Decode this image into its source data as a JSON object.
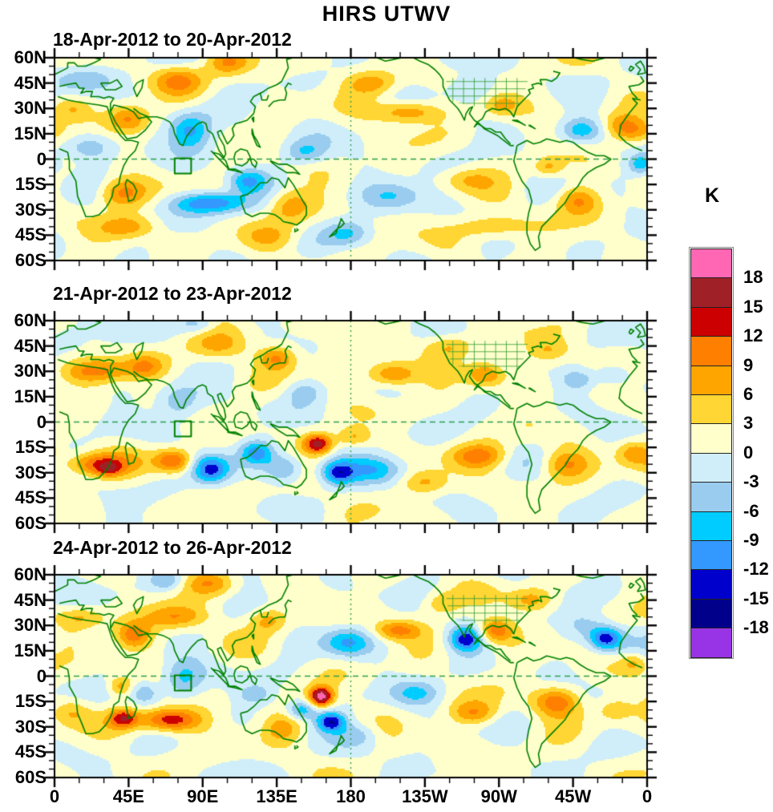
{
  "title": "HIRS UTWV",
  "colorbar": {
    "title": "K",
    "tick_labels": [
      "18",
      "15",
      "12",
      "9",
      "6",
      "3",
      "0",
      "-3",
      "-6",
      "-9",
      "-12",
      "-15",
      "-18"
    ]
  },
  "axes": {
    "lat_labels": [
      "60N",
      "45N",
      "30N",
      "15N",
      "0",
      "15S",
      "30S",
      "45S",
      "60S"
    ],
    "lon_labels": [
      "0",
      "45E",
      "90E",
      "135E",
      "180",
      "135W",
      "90W",
      "45W",
      "0"
    ]
  },
  "chart_data": {
    "type": "heatmap",
    "subtype": "filled-contour anomaly world maps, plate carree, centered on 180",
    "title": "HIRS UTWV",
    "unit": "K",
    "xlabel": "",
    "ylabel": "",
    "lon_ticks_deg": [
      0,
      45,
      90,
      135,
      180,
      225,
      270,
      315,
      360
    ],
    "lat_ticks_deg": [
      60,
      45,
      30,
      15,
      0,
      -15,
      -30,
      -45,
      -60
    ],
    "map_extent": {
      "lon": [
        0,
        360
      ],
      "lat": [
        -60,
        60
      ]
    },
    "levels": [
      -18,
      -15,
      -12,
      -9,
      -6,
      -3,
      0,
      3,
      6,
      9,
      12,
      15,
      18
    ],
    "level_colors_low_to_high": [
      "#9933E6",
      "#00008B",
      "#0000CC",
      "#3399FF",
      "#00CCFF",
      "#99CCEE",
      "#CFEEFA",
      "#FFFFCC",
      "#FFD633",
      "#FFA500",
      "#FF8000",
      "#CC0000",
      "#A02028",
      "#FF66B3"
    ],
    "grid": {
      "equator_dashed": true,
      "dateline_dashed": true
    },
    "region_marker_box": {
      "lon": [
        73,
        83
      ],
      "lat": [
        -8.5,
        0.5
      ]
    },
    "coast_color": "#008000",
    "panels": [
      {
        "label": "18-Apr-2012 to 20-Apr-2012",
        "anomaly_blobs": [
          [
            20,
            48,
            14,
            6,
            -5
          ],
          [
            355,
            16,
            10,
            5,
            6
          ],
          [
            10,
            30,
            8,
            5,
            5
          ],
          [
            45,
            24,
            9,
            6,
            10
          ],
          [
            22,
            7,
            11,
            6,
            -7
          ],
          [
            75,
            47,
            11,
            6,
            8
          ],
          [
            105,
            57,
            9,
            5,
            8
          ],
          [
            82,
            17,
            9,
            8,
            -11
          ],
          [
            40,
            -20,
            10,
            6,
            9
          ],
          [
            95,
            -26,
            16,
            4.5,
            -13
          ],
          [
            117,
            -13,
            8,
            5,
            -9
          ],
          [
            143,
            -27,
            9,
            7,
            7
          ],
          [
            152,
            4,
            9,
            5,
            -7
          ],
          [
            192,
            45,
            11,
            5,
            7
          ],
          [
            215,
            28,
            13,
            4.5,
            10
          ],
          [
            252,
            41,
            11,
            6,
            -5
          ],
          [
            272,
            32,
            8,
            5,
            7
          ],
          [
            320,
            17,
            9,
            5,
            -8
          ],
          [
            345,
            20,
            8,
            5,
            6
          ],
          [
            300,
            -5,
            6,
            4,
            6
          ],
          [
            318,
            -24,
            9,
            6,
            9
          ],
          [
            205,
            -22,
            13,
            6,
            -7
          ],
          [
            250,
            -12,
            11,
            5,
            5
          ],
          [
            265,
            -40,
            18,
            5,
            6
          ],
          [
            356,
            -3,
            5,
            4,
            -8
          ],
          [
            45,
            -40,
            13,
            5,
            7
          ],
          [
            130,
            -46,
            11,
            5,
            5
          ],
          [
            178,
            -44,
            9,
            5,
            -6
          ]
        ]
      },
      {
        "label": "21-Apr-2012 to 23-Apr-2012",
        "anomaly_blobs": [
          [
            25,
            30,
            16,
            5,
            9
          ],
          [
            55,
            33,
            8,
            5,
            7
          ],
          [
            5,
            49,
            8,
            5,
            -4
          ],
          [
            75,
            12,
            9,
            7,
            -7
          ],
          [
            100,
            45,
            12,
            6,
            6
          ],
          [
            135,
            38,
            8,
            5,
            9
          ],
          [
            25,
            -25,
            14,
            5,
            11
          ],
          [
            33,
            -28,
            5,
            3,
            6
          ],
          [
            72,
            -23,
            8,
            5,
            12
          ],
          [
            95,
            -28,
            8,
            6,
            -14
          ],
          [
            123,
            -18,
            7,
            5,
            -10
          ],
          [
            140,
            -28,
            8,
            6,
            -8
          ],
          [
            160,
            -13,
            6,
            4,
            15
          ],
          [
            172,
            -30,
            7,
            5,
            -12
          ],
          [
            182,
            -9,
            7,
            4,
            6
          ],
          [
            205,
            28,
            11,
            5,
            11
          ],
          [
            240,
            45,
            10,
            5,
            6
          ],
          [
            262,
            28,
            8,
            5,
            9
          ],
          [
            300,
            42,
            10,
            5,
            6
          ],
          [
            318,
            25,
            7,
            4,
            -6
          ],
          [
            340,
            28,
            8,
            5,
            -6
          ],
          [
            195,
            -28,
            13,
            6,
            -9
          ],
          [
            258,
            -20,
            12,
            5,
            9
          ],
          [
            225,
            -36,
            10,
            5,
            7
          ],
          [
            310,
            -25,
            10,
            6,
            8
          ],
          [
            352,
            -18,
            7,
            5,
            7
          ],
          [
            87,
            58,
            8,
            4,
            -6
          ],
          [
            152,
            18,
            8,
            5,
            -5
          ]
        ]
      },
      {
        "label": "24-Apr-2012 to 26-Apr-2012",
        "anomaly_blobs": [
          [
            48,
            24,
            8,
            6,
            11
          ],
          [
            75,
            35,
            14,
            5,
            8
          ],
          [
            15,
            35,
            10,
            4,
            5
          ],
          [
            78,
            -2,
            9,
            8,
            -8
          ],
          [
            55,
            -10,
            6,
            5,
            -6
          ],
          [
            40,
            -6,
            5,
            4,
            7
          ],
          [
            70,
            -26,
            13,
            5,
            15
          ],
          [
            42,
            -25,
            6,
            4,
            12
          ],
          [
            10,
            -21,
            8,
            6,
            6
          ],
          [
            162,
            -12,
            5,
            4,
            19
          ],
          [
            168,
            -27,
            6,
            4,
            -14
          ],
          [
            150,
            -20,
            6,
            4,
            -9
          ],
          [
            138,
            -31,
            8,
            6,
            6
          ],
          [
            122,
            -11,
            7,
            4,
            -5
          ],
          [
            178,
            20,
            10,
            6,
            -9
          ],
          [
            130,
            33,
            8,
            5,
            7
          ],
          [
            95,
            55,
            10,
            5,
            7
          ],
          [
            250,
            22,
            7,
            5,
            -14
          ],
          [
            268,
            27,
            8,
            5,
            11
          ],
          [
            208,
            27,
            10,
            4,
            9
          ],
          [
            290,
            45,
            9,
            5,
            7
          ],
          [
            335,
            22,
            7,
            5,
            -14
          ],
          [
            322,
            30,
            10,
            6,
            -5
          ],
          [
            305,
            -15,
            10,
            6,
            11
          ],
          [
            255,
            -22,
            10,
            5,
            8
          ],
          [
            220,
            -10,
            10,
            5,
            -6
          ],
          [
            352,
            8,
            6,
            4,
            6
          ],
          [
            340,
            -20,
            8,
            5,
            5
          ],
          [
            68,
            56,
            7,
            4,
            -6
          ],
          [
            235,
            43,
            8,
            5,
            5
          ],
          [
            185,
            -35,
            9,
            5,
            -5
          ]
        ]
      }
    ]
  }
}
